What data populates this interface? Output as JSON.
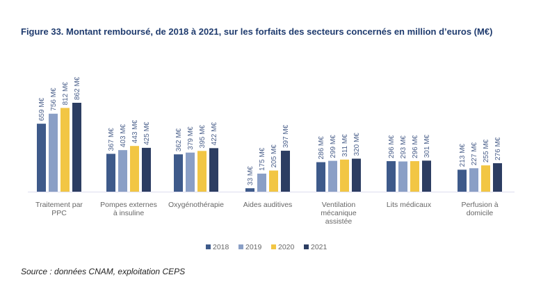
{
  "title": "Figure 33. Montant remboursé, de 2018 à 2021, sur les forfaits des secteurs concernés en million d’euros (M€)",
  "source": "Source : données CNAM, exploitation CEPS",
  "chart_data": {
    "type": "bar",
    "title": "Figure 33. Montant remboursé, de 2018 à 2021, sur les forfaits des secteurs concernés en million d’euros (M€)",
    "unit": "M€",
    "categories": [
      [
        "Traitement par",
        "PPC"
      ],
      [
        "Pompes externes",
        "à insuline"
      ],
      [
        "Oxygénothérapie"
      ],
      [
        "Aides auditives"
      ],
      [
        "Ventilation",
        "mécanique",
        "assistée"
      ],
      [
        "Lits médicaux"
      ],
      [
        "Perfusion à",
        "domicile"
      ]
    ],
    "series": [
      {
        "name": "2018",
        "color": "#3e5a8a",
        "values": [
          659,
          367,
          362,
          33,
          286,
          296,
          213
        ]
      },
      {
        "name": "2019",
        "color": "#8a9fc6",
        "values": [
          756,
          403,
          379,
          175,
          299,
          293,
          227
        ]
      },
      {
        "name": "2020",
        "color": "#f2c644",
        "values": [
          812,
          443,
          395,
          205,
          311,
          296,
          255
        ]
      },
      {
        "name": "2021",
        "color": "#2c3d62",
        "values": [
          862,
          425,
          422,
          397,
          320,
          301,
          276
        ]
      }
    ],
    "legend": "bottom",
    "grid": false
  }
}
